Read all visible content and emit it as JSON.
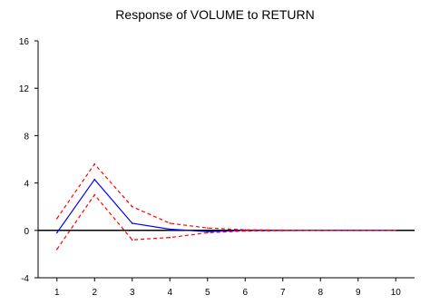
{
  "chart_data": {
    "type": "line",
    "title": "Response of VOLUME to RETURN",
    "xlabel": "",
    "ylabel": "",
    "x": [
      1,
      2,
      3,
      4,
      5,
      6,
      7,
      8,
      9,
      10
    ],
    "ylim": [
      -4,
      16
    ],
    "xlim": [
      0.5,
      10.5
    ],
    "yticks": [
      -4,
      0,
      4,
      8,
      12,
      16
    ],
    "xticks": [
      1,
      2,
      3,
      4,
      5,
      6,
      7,
      8,
      9,
      10
    ],
    "grid": false,
    "legend": "none",
    "series": [
      {
        "role": "response",
        "color": "#0000ff",
        "dash": "solid",
        "values": [
          -0.2,
          4.3,
          0.6,
          0.1,
          -0.1,
          0.0,
          0.0,
          0.0,
          0.0,
          0.0
        ]
      },
      {
        "role": "upper-band",
        "color": "#ff0000",
        "dash": "dashed",
        "values": [
          1.0,
          5.6,
          2.0,
          0.6,
          0.2,
          0.05,
          0.02,
          0.0,
          0.0,
          0.0
        ]
      },
      {
        "role": "lower-band",
        "color": "#ff0000",
        "dash": "dashed",
        "values": [
          -1.6,
          3.0,
          -0.8,
          -0.6,
          -0.2,
          -0.05,
          -0.02,
          0.0,
          0.0,
          0.0
        ]
      }
    ],
    "zero_line_color": "#000000"
  }
}
